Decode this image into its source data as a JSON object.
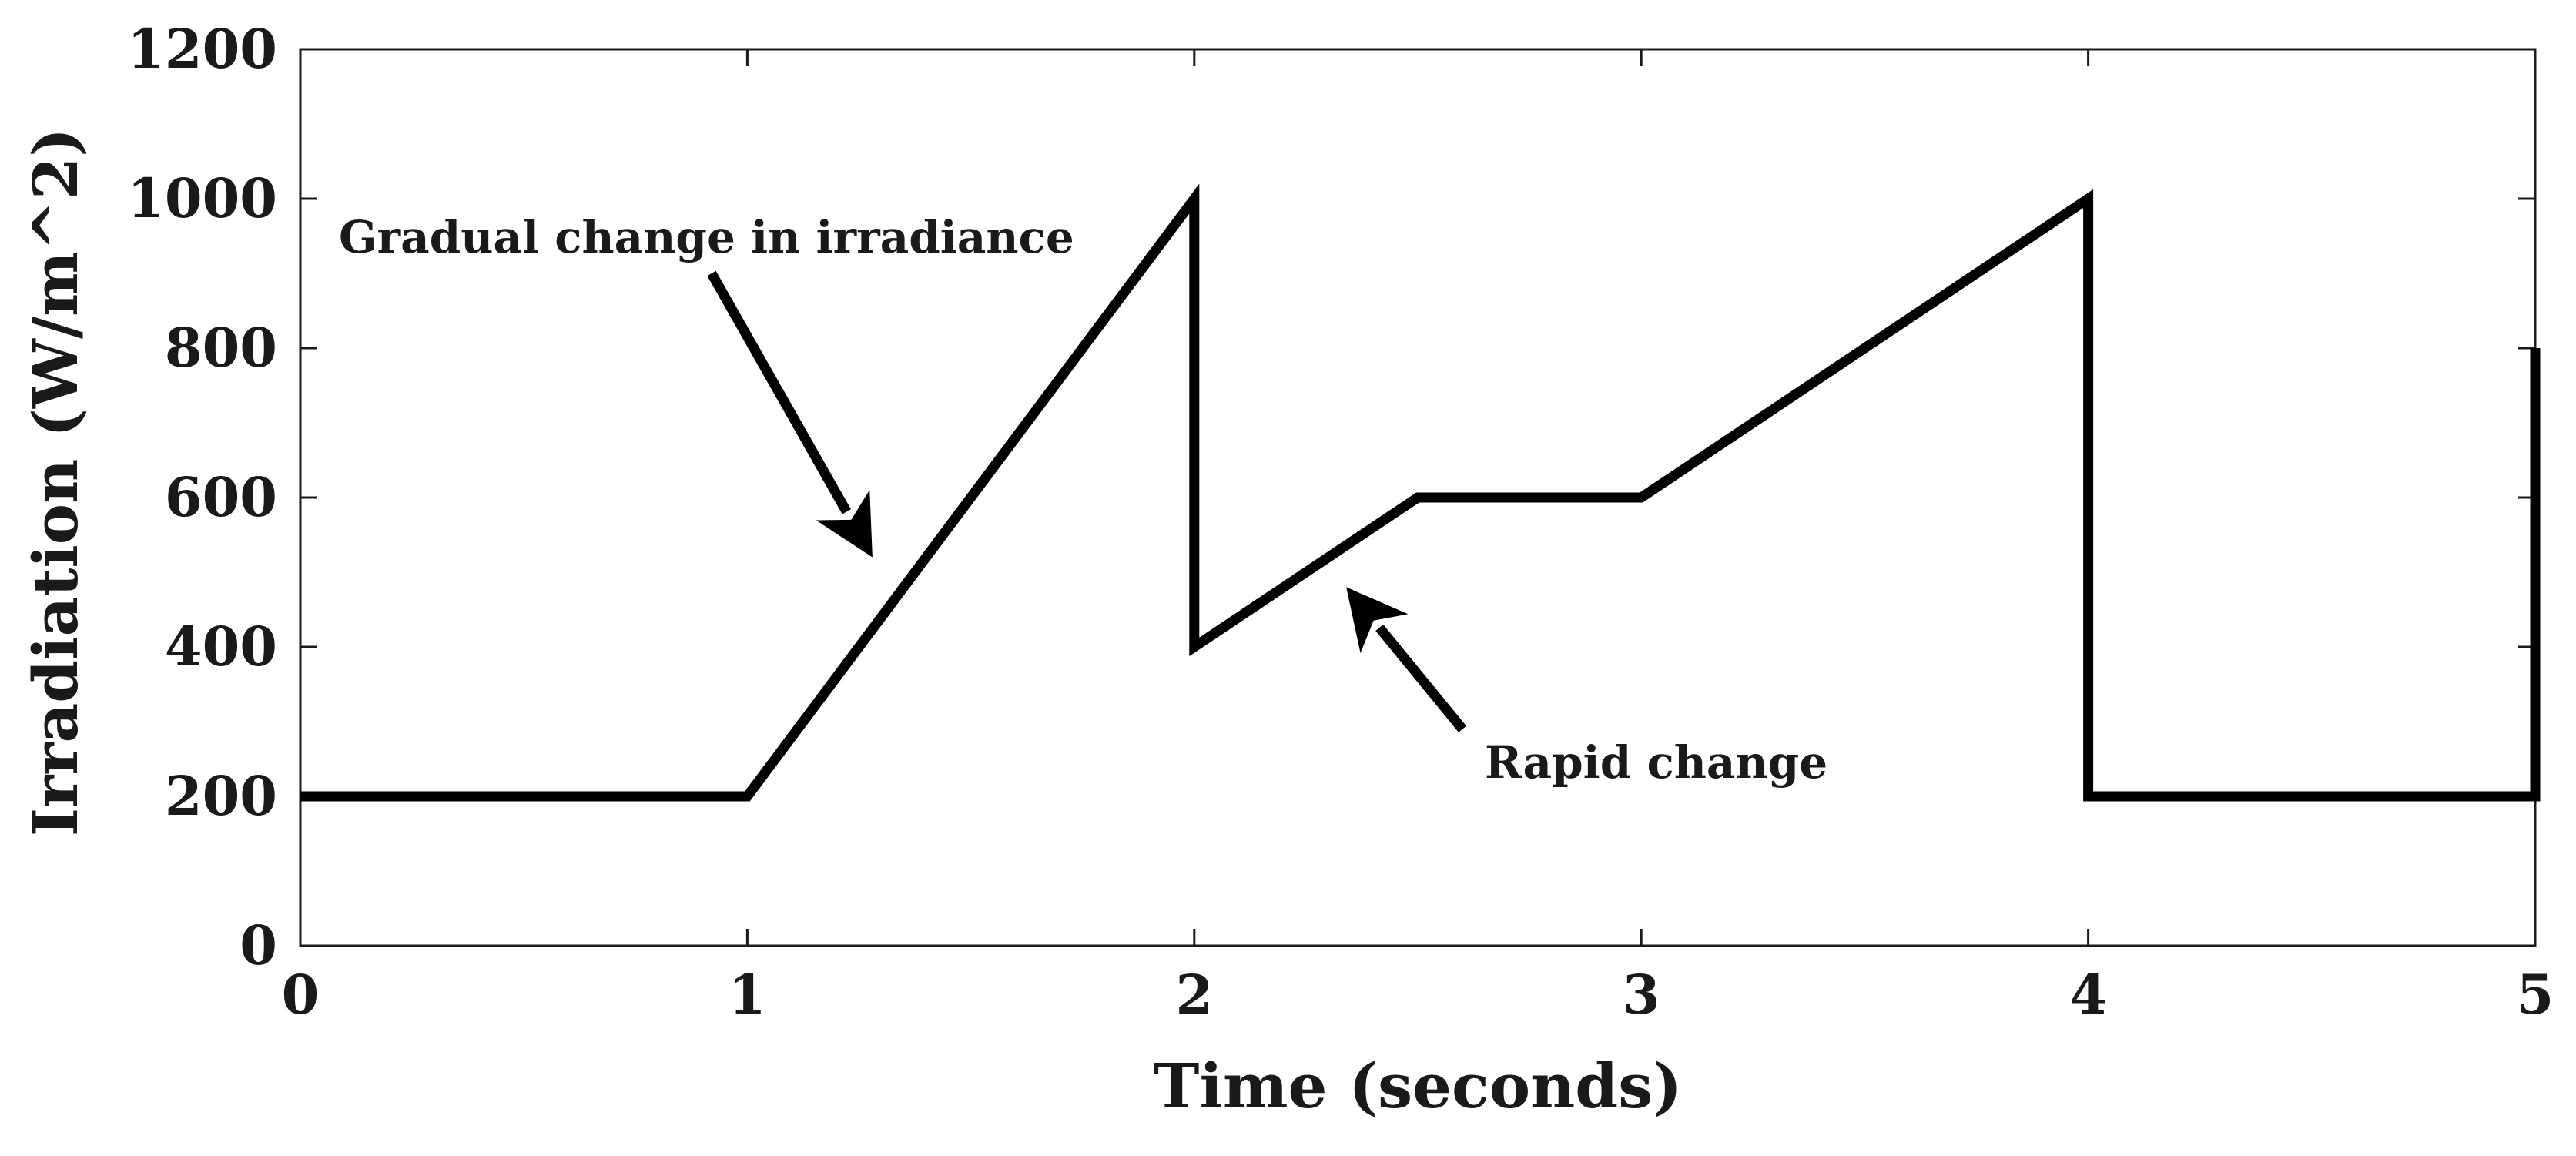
{
  "chart_data": {
    "type": "line",
    "title": "",
    "xlabel": "Time (seconds)",
    "ylabel": "Irradiation (W/m^2)",
    "xlim": [
      0,
      5
    ],
    "ylim": [
      0,
      1200
    ],
    "xticks": [
      0,
      1,
      2,
      3,
      4,
      5
    ],
    "yticks": [
      0,
      200,
      400,
      600,
      800,
      1000,
      1200
    ],
    "xtick_labels": [
      "0",
      "1",
      "2",
      "3",
      "4",
      "5"
    ],
    "ytick_labels": [
      "0",
      "200",
      "400",
      "600",
      "800",
      "1000",
      "1200"
    ],
    "grid": false,
    "series": [
      {
        "name": "Irradiation",
        "color": "#000000",
        "x": [
          0,
          1,
          2,
          2,
          2.5,
          3,
          4,
          4,
          5,
          5
        ],
        "y": [
          200,
          200,
          1000,
          400,
          600,
          600,
          1000,
          200,
          200,
          800
        ]
      }
    ],
    "annotations": [
      {
        "text": "Gradual change in irradiance",
        "arrow_tip": [
          1.28,
          520
        ],
        "arrow_tail": [
          0.92,
          900
        ]
      },
      {
        "text": "Rapid change",
        "arrow_tip": [
          2.34,
          480
        ],
        "arrow_tail": [
          2.6,
          290
        ]
      }
    ]
  }
}
